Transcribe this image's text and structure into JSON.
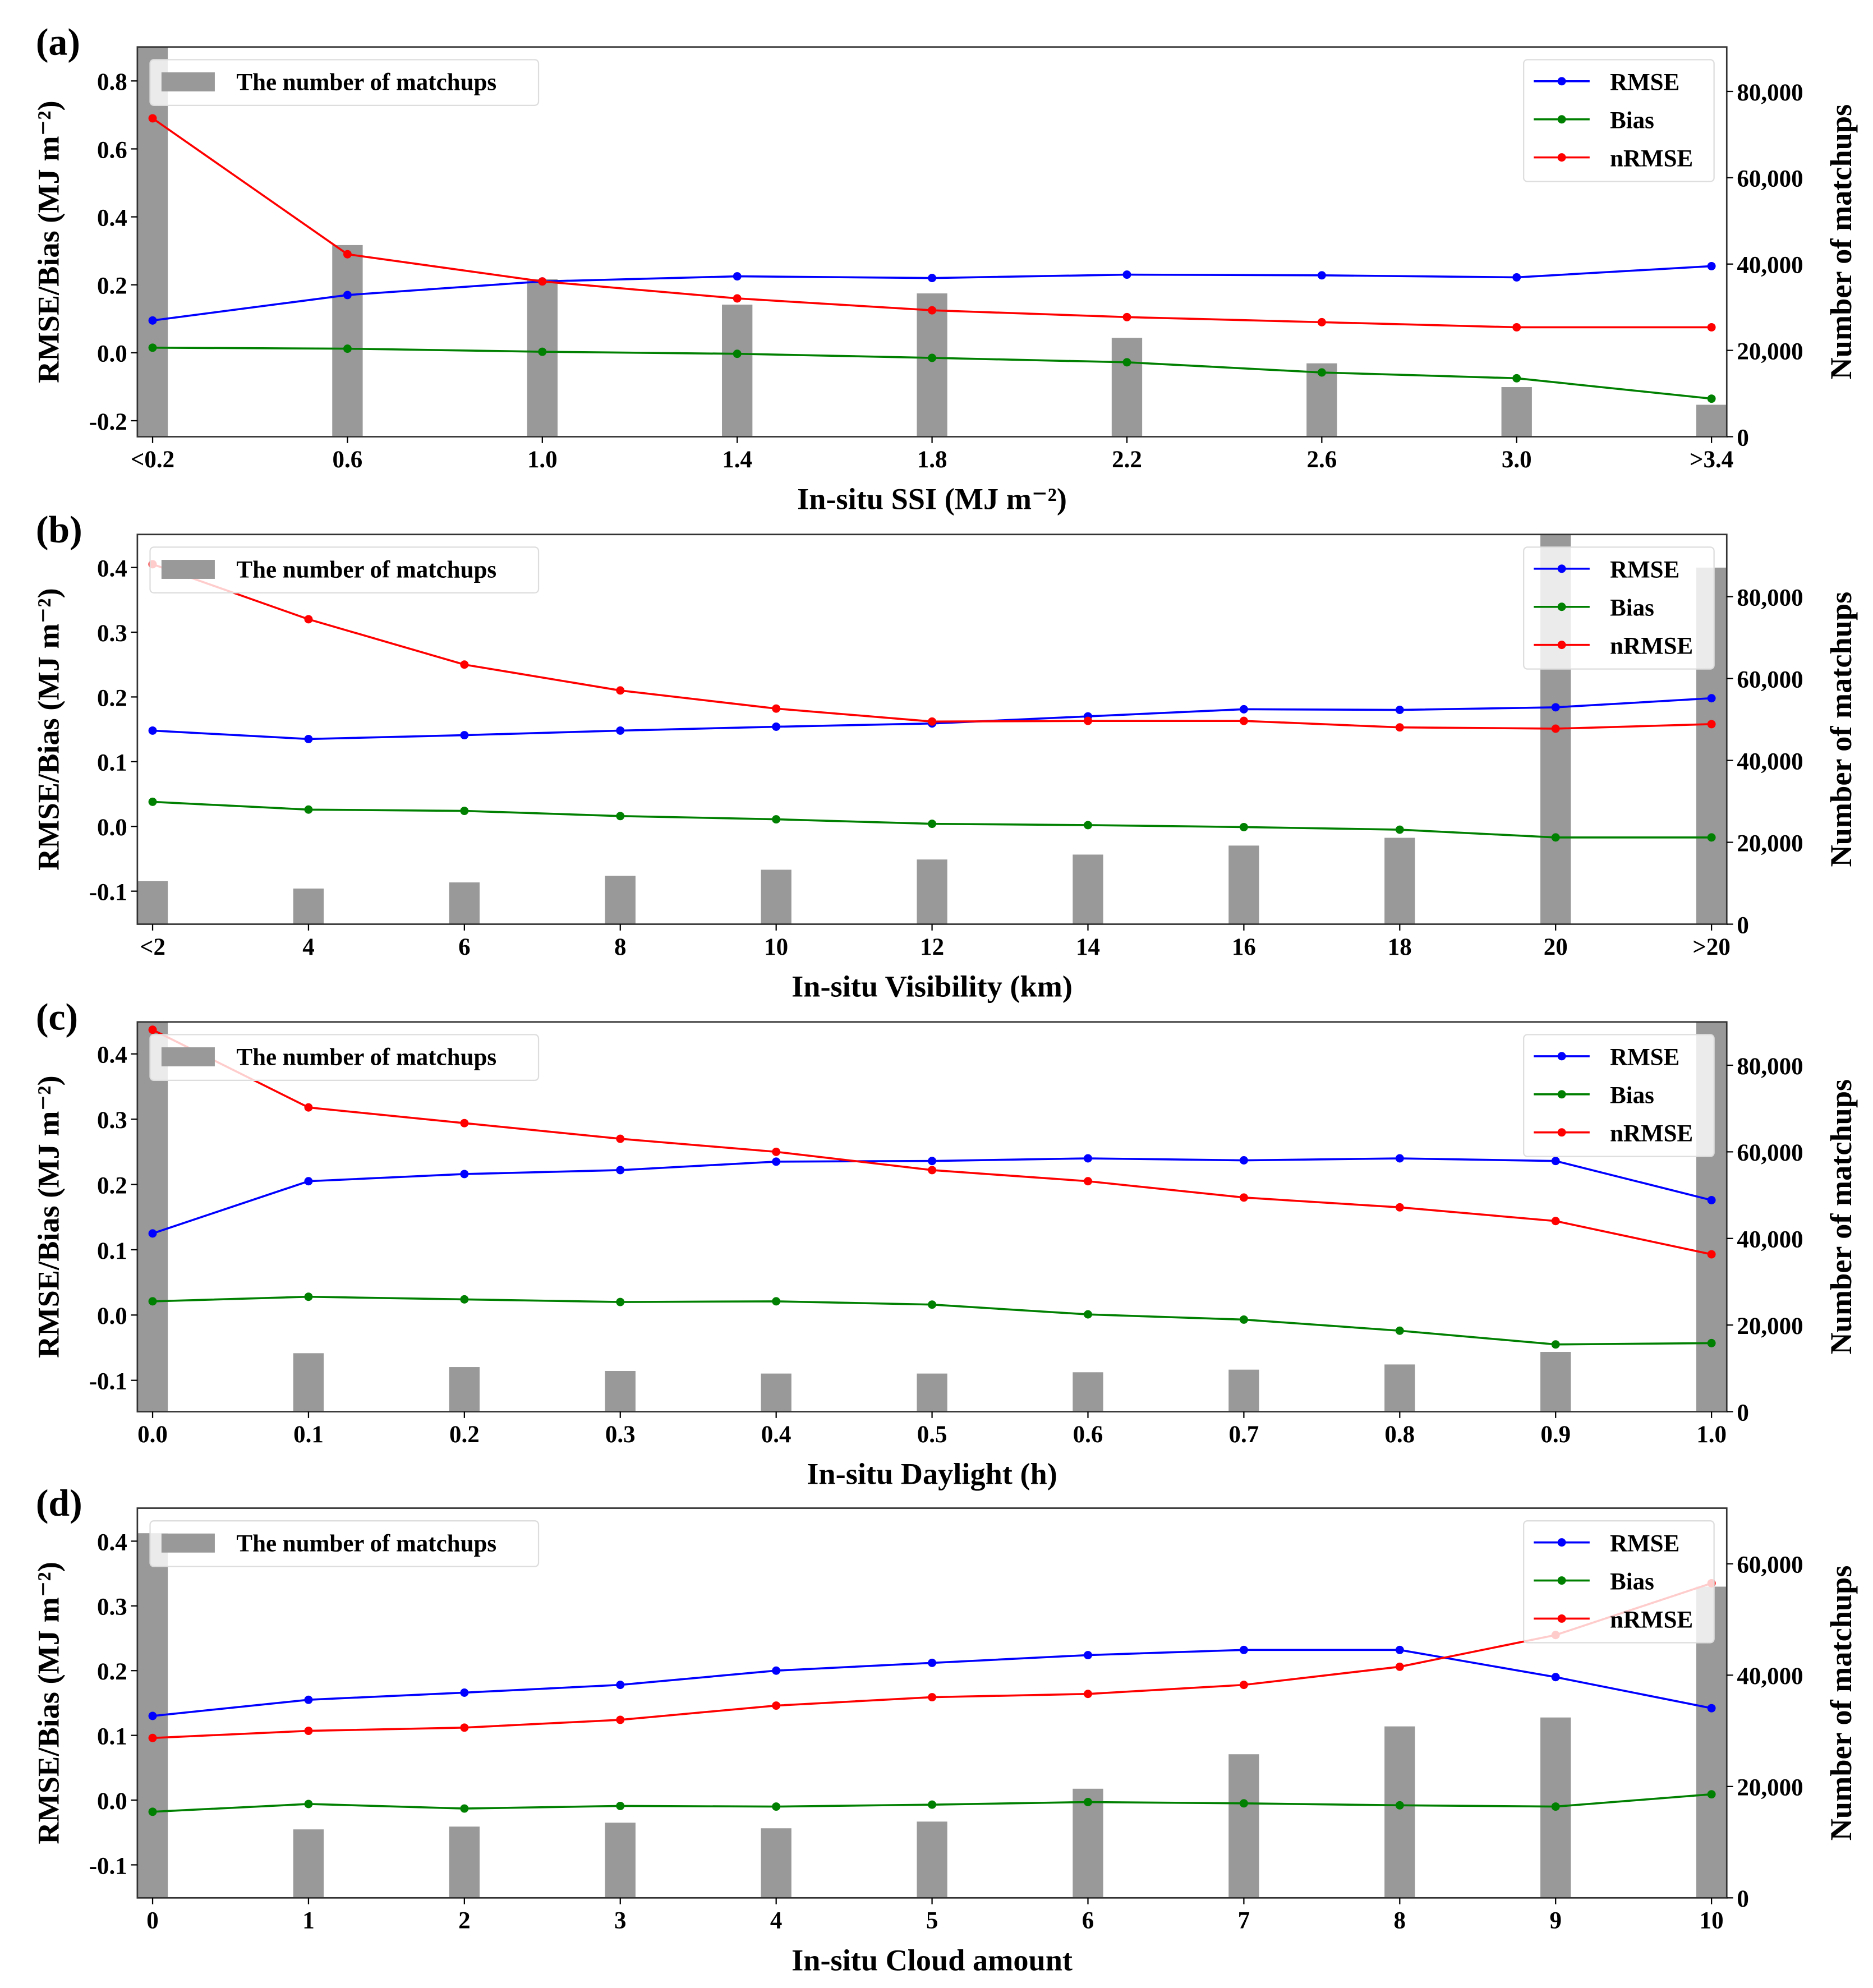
{
  "chart_data": [
    {
      "panel_label": "(a)",
      "type": "bar+line",
      "xlabel": "In-situ SSI (MJ m⁻²)",
      "ylabel": "RMSE/Bias (MJ m⁻²)",
      "y2label": "Number of matchups",
      "categories": [
        "<0.2",
        "0.6",
        "1.0",
        "1.4",
        "1.8",
        "2.2",
        "2.6",
        "3.0",
        ">3.4"
      ],
      "ylim": [
        -0.247,
        0.9
      ],
      "yticks": [
        "-0.2",
        "0.0",
        "0.2",
        "0.4",
        "0.6",
        "0.8"
      ],
      "y2lim": [
        0,
        90300
      ],
      "y2ticks": [
        "0",
        "20,000",
        "40,000",
        "60,000",
        "80,000"
      ],
      "bars": {
        "name": "The number of matchups",
        "values": [
          100000,
          44400,
          36500,
          30600,
          33200,
          22900,
          17000,
          11500,
          7400
        ]
      },
      "series": [
        {
          "name": "RMSE",
          "color": "#0000ff",
          "values": [
            0.095,
            0.17,
            0.21,
            0.225,
            0.22,
            0.23,
            0.228,
            0.222,
            0.255
          ]
        },
        {
          "name": "Bias",
          "color": "#008000",
          "values": [
            0.015,
            0.012,
            0.003,
            -0.003,
            -0.015,
            -0.028,
            -0.058,
            -0.075,
            -0.135
          ]
        },
        {
          "name": "nRMSE",
          "color": "#ff0000",
          "values": [
            0.69,
            0.29,
            0.21,
            0.16,
            0.125,
            0.105,
            0.09,
            0.075,
            0.075
          ]
        }
      ],
      "legend_placement": [
        "top-left",
        "top-right"
      ]
    },
    {
      "panel_label": "(b)",
      "type": "bar+line",
      "xlabel": "In-situ Visibility (km)",
      "ylabel": "RMSE/Bias (MJ m⁻²)",
      "y2label": "Number of matchups",
      "categories": [
        "<2",
        "4",
        "6",
        "8",
        "10",
        "12",
        "14",
        "16",
        "18",
        "20",
        ">20"
      ],
      "ylim": [
        -0.151,
        0.451
      ],
      "yticks": [
        "-0.1",
        "0.0",
        "0.1",
        "0.2",
        "0.3",
        "0.4"
      ],
      "y2lim": [
        0,
        95200
      ],
      "y2ticks": [
        "0",
        "20,000",
        "40,000",
        "60,000",
        "80,000"
      ],
      "bars": {
        "name": "The number of matchups",
        "values": [
          10500,
          8700,
          10200,
          11800,
          13300,
          15800,
          17000,
          19200,
          21100,
          100000,
          87100
        ]
      },
      "series": [
        {
          "name": "RMSE",
          "color": "#0000ff",
          "values": [
            0.148,
            0.135,
            0.141,
            0.148,
            0.154,
            0.159,
            0.17,
            0.181,
            0.18,
            0.184,
            0.198
          ]
        },
        {
          "name": "Bias",
          "color": "#008000",
          "values": [
            0.038,
            0.026,
            0.024,
            0.016,
            0.011,
            0.004,
            0.002,
            -0.001,
            -0.005,
            -0.017,
            -0.017
          ]
        },
        {
          "name": "nRMSE",
          "color": "#ff0000",
          "values": [
            0.405,
            0.32,
            0.25,
            0.21,
            0.182,
            0.162,
            0.163,
            0.163,
            0.153,
            0.151,
            0.158
          ]
        }
      ],
      "legend_placement": [
        "top-left",
        "top-right"
      ]
    },
    {
      "panel_label": "(c)",
      "type": "bar+line",
      "xlabel": "In-situ Daylight (h)",
      "ylabel": "RMSE/Bias (MJ m⁻²)",
      "y2label": "Number of matchups",
      "categories": [
        "0.0",
        "0.1",
        "0.2",
        "0.3",
        "0.4",
        "0.5",
        "0.6",
        "0.7",
        "0.8",
        "0.9",
        "1.0"
      ],
      "ylim": [
        -0.148,
        0.449
      ],
      "yticks": [
        "-0.1",
        "0.0",
        "0.1",
        "0.2",
        "0.3",
        "0.4"
      ],
      "y2lim": [
        0,
        90000
      ],
      "y2ticks": [
        "0",
        "20,000",
        "40,000",
        "60,000",
        "80,000"
      ],
      "bars": {
        "name": "The number of matchups",
        "values": [
          100000,
          13500,
          10300,
          9400,
          8800,
          8800,
          9100,
          9700,
          10900,
          13800,
          100000
        ]
      },
      "series": [
        {
          "name": "RMSE",
          "color": "#0000ff",
          "values": [
            0.125,
            0.205,
            0.216,
            0.222,
            0.235,
            0.236,
            0.24,
            0.237,
            0.24,
            0.236,
            0.176
          ]
        },
        {
          "name": "Bias",
          "color": "#008000",
          "values": [
            0.021,
            0.028,
            0.024,
            0.02,
            0.021,
            0.016,
            0.001,
            -0.007,
            -0.024,
            -0.045,
            -0.043
          ]
        },
        {
          "name": "nRMSE",
          "color": "#ff0000",
          "values": [
            0.437,
            0.318,
            0.294,
            0.27,
            0.25,
            0.222,
            0.205,
            0.18,
            0.165,
            0.144,
            0.093
          ]
        }
      ],
      "legend_placement": [
        "top-left",
        "top-right"
      ]
    },
    {
      "panel_label": "(d)",
      "type": "bar+line",
      "xlabel": "In-situ Cloud amount",
      "ylabel": "RMSE/Bias (MJ m⁻²)",
      "y2label": "Number of matchups",
      "categories": [
        "0",
        "1",
        "2",
        "3",
        "4",
        "5",
        "6",
        "7",
        "8",
        "9",
        "10"
      ],
      "ylim": [
        -0.151,
        0.451
      ],
      "yticks": [
        "-0.1",
        "0.0",
        "0.1",
        "0.2",
        "0.3",
        "0.4"
      ],
      "y2lim": [
        0,
        70000
      ],
      "y2ticks": [
        "0",
        "20,000",
        "40,000",
        "60,000"
      ],
      "bars": {
        "name": "The number of matchups",
        "values": [
          65500,
          12300,
          12800,
          13500,
          12500,
          13700,
          19600,
          25800,
          30800,
          32400,
          55900
        ]
      },
      "series": [
        {
          "name": "RMSE",
          "color": "#0000ff",
          "values": [
            0.13,
            0.155,
            0.166,
            0.178,
            0.2,
            0.212,
            0.224,
            0.232,
            0.232,
            0.19,
            0.142
          ]
        },
        {
          "name": "Bias",
          "color": "#008000",
          "values": [
            -0.018,
            -0.006,
            -0.013,
            -0.009,
            -0.01,
            -0.007,
            -0.003,
            -0.005,
            -0.008,
            -0.01,
            0.009
          ]
        },
        {
          "name": "nRMSE",
          "color": "#ff0000",
          "values": [
            0.096,
            0.107,
            0.112,
            0.124,
            0.146,
            0.159,
            0.164,
            0.178,
            0.206,
            0.255,
            0.335
          ]
        }
      ],
      "legend_placement": [
        "top-left",
        "top-right"
      ]
    }
  ]
}
